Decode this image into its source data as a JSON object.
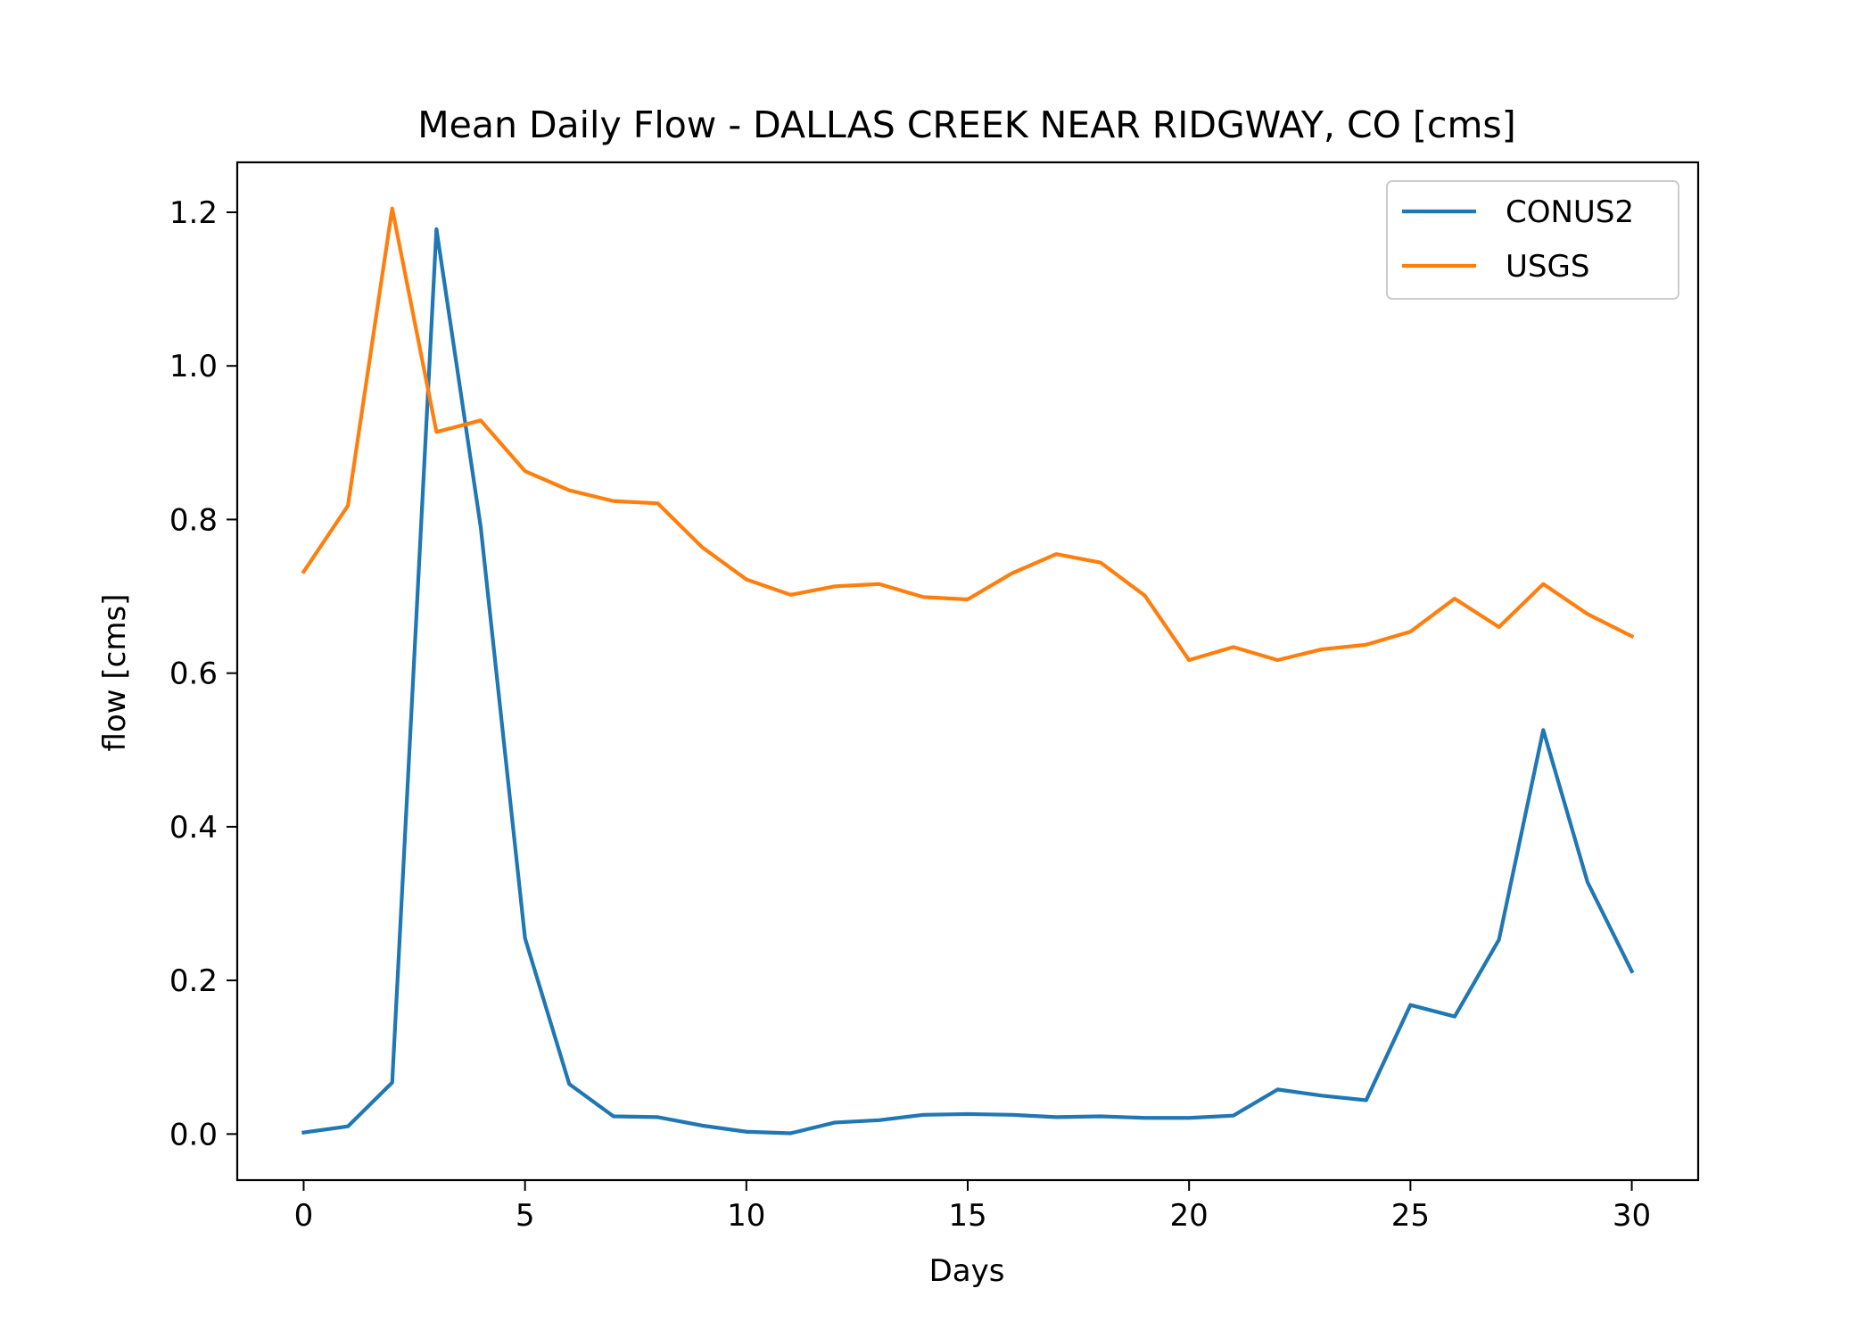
{
  "chart_data": {
    "type": "line",
    "title": "Mean Daily Flow - DALLAS CREEK NEAR RIDGWAY, CO [cms]",
    "xlabel": "Days",
    "ylabel": "flow [cms]",
    "xlim": [
      -1.5,
      31.5
    ],
    "ylim": [
      -0.06,
      1.265
    ],
    "x_ticks": [
      0,
      5,
      10,
      15,
      20,
      25,
      30
    ],
    "x_tick_labels": [
      "0",
      "5",
      "10",
      "15",
      "20",
      "25",
      "30"
    ],
    "y_ticks": [
      0.0,
      0.2,
      0.4,
      0.6,
      0.8,
      1.0,
      1.2
    ],
    "y_tick_labels": [
      "0.0",
      "0.2",
      "0.4",
      "0.6",
      "0.8",
      "1.0",
      "1.2"
    ],
    "grid": false,
    "legend_position": "top-right",
    "x": [
      0,
      1,
      2,
      3,
      4,
      5,
      6,
      7,
      8,
      9,
      10,
      11,
      12,
      13,
      14,
      15,
      16,
      17,
      18,
      19,
      20,
      21,
      22,
      23,
      24,
      25,
      26,
      27,
      28,
      29,
      30
    ],
    "series": [
      {
        "name": "CONUS2",
        "color": "#1f77b4",
        "values": [
          0.002,
          0.01,
          0.067,
          1.178,
          0.79,
          0.255,
          0.065,
          0.023,
          0.022,
          0.011,
          0.003,
          0.001,
          0.015,
          0.018,
          0.025,
          0.026,
          0.025,
          0.022,
          0.023,
          0.021,
          0.021,
          0.024,
          0.058,
          0.05,
          0.044,
          0.168,
          0.153,
          0.253,
          0.526,
          0.328,
          0.212
        ]
      },
      {
        "name": "USGS",
        "color": "#ff7f0e",
        "values": [
          0.732,
          0.818,
          1.205,
          0.914,
          0.929,
          0.863,
          0.838,
          0.824,
          0.821,
          0.764,
          0.722,
          0.702,
          0.713,
          0.716,
          0.699,
          0.696,
          0.73,
          0.755,
          0.744,
          0.701,
          0.617,
          0.634,
          0.617,
          0.631,
          0.637,
          0.654,
          0.697,
          0.66,
          0.716,
          0.677,
          0.648
        ]
      }
    ]
  }
}
